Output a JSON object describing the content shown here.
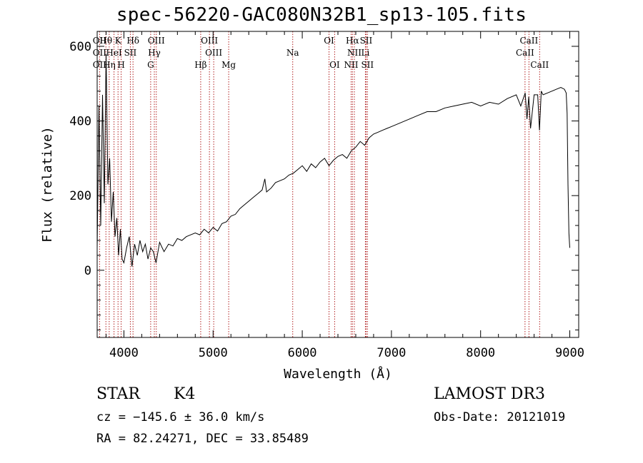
{
  "chart_data": {
    "type": "line",
    "title": "spec-56220-GAC080N32B1_sp13-105.fits",
    "xlabel": "Wavelength (Å)",
    "ylabel": "Flux (relative)",
    "xlim": [
      3700,
      9100
    ],
    "ylim": [
      -180,
      640
    ],
    "x_ticks": [
      4000,
      5000,
      6000,
      7000,
      8000,
      9000
    ],
    "x_tick_labels": [
      "4000",
      "5000",
      "6000",
      "7000",
      "8000",
      "9000"
    ],
    "y_ticks": [
      0,
      200,
      400,
      600
    ],
    "y_tick_labels": [
      "0",
      "200",
      "400",
      "600"
    ],
    "series": [
      {
        "name": "spectrum",
        "x": [
          3700,
          3720,
          3740,
          3760,
          3780,
          3800,
          3820,
          3840,
          3860,
          3880,
          3900,
          3920,
          3940,
          3960,
          3980,
          4000,
          4030,
          4060,
          4090,
          4120,
          4150,
          4180,
          4210,
          4240,
          4270,
          4300,
          4330,
          4360,
          4400,
          4450,
          4500,
          4550,
          4600,
          4650,
          4700,
          4750,
          4800,
          4850,
          4900,
          4950,
          5000,
          5050,
          5100,
          5150,
          5200,
          5250,
          5300,
          5350,
          5400,
          5450,
          5500,
          5550,
          5580,
          5600,
          5650,
          5700,
          5750,
          5800,
          5850,
          5900,
          5950,
          6000,
          6050,
          6100,
          6150,
          6200,
          6250,
          6300,
          6350,
          6400,
          6450,
          6500,
          6550,
          6600,
          6650,
          6700,
          6750,
          6800,
          6850,
          6900,
          6950,
          7000,
          7100,
          7200,
          7300,
          7400,
          7500,
          7600,
          7700,
          7800,
          7900,
          8000,
          8100,
          8200,
          8300,
          8400,
          8450,
          8500,
          8520,
          8540,
          8560,
          8600,
          8640,
          8660,
          8680,
          8700,
          8750,
          8800,
          8850,
          8900,
          8940,
          8960,
          8970,
          8980,
          8990,
          9000
        ],
        "y": [
          60,
          440,
          120,
          470,
          180,
          580,
          230,
          300,
          130,
          210,
          90,
          140,
          40,
          110,
          30,
          20,
          60,
          90,
          10,
          70,
          40,
          80,
          50,
          70,
          30,
          60,
          50,
          20,
          75,
          50,
          70,
          65,
          85,
          80,
          90,
          95,
          100,
          95,
          110,
          100,
          115,
          105,
          125,
          130,
          145,
          150,
          165,
          175,
          185,
          195,
          205,
          215,
          245,
          210,
          220,
          235,
          240,
          245,
          255,
          260,
          270,
          280,
          265,
          285,
          275,
          290,
          300,
          280,
          295,
          305,
          310,
          300,
          320,
          330,
          345,
          335,
          355,
          365,
          370,
          375,
          380,
          385,
          395,
          405,
          415,
          425,
          425,
          435,
          440,
          445,
          450,
          440,
          450,
          445,
          460,
          470,
          440,
          475,
          405,
          465,
          380,
          470,
          470,
          375,
          480,
          470,
          475,
          480,
          485,
          490,
          485,
          475,
          420,
          230,
          100,
          60
        ]
      }
    ],
    "lines_top": [
      {
        "label": "OII",
        "x": 3727
      },
      {
        "label": "Hθ",
        "x": 3798
      },
      {
        "label": "K",
        "x": 3934
      },
      {
        "label": "Hδ",
        "x": 4102
      },
      {
        "label": "OIII",
        "x": 4363
      },
      {
        "label": "OIII",
        "x": 4959
      },
      {
        "label": "OI",
        "x": 6300
      },
      {
        "label": "Hα",
        "x": 6563
      },
      {
        "label": "SII",
        "x": 6716
      },
      {
        "label": "CaII",
        "x": 8542
      }
    ],
    "lines_mid": [
      {
        "label": "OII",
        "x": 3727
      },
      {
        "label": "HeI",
        "x": 3889
      },
      {
        "label": "SII",
        "x": 4072
      },
      {
        "label": "Hγ",
        "x": 4341
      },
      {
        "label": "OIII",
        "x": 5007
      },
      {
        "label": "Na",
        "x": 5893
      },
      {
        "label": "NII",
        "x": 6584
      },
      {
        "label": "Li",
        "x": 6708
      },
      {
        "label": "CaII",
        "x": 8498
      }
    ],
    "lines_low": [
      {
        "label": "OII",
        "x": 3727
      },
      {
        "label": "Hη",
        "x": 3835
      },
      {
        "label": "H",
        "x": 3969
      },
      {
        "label": "G",
        "x": 4300
      },
      {
        "label": "Hβ",
        "x": 4861
      },
      {
        "label": "Mg",
        "x": 5175
      },
      {
        "label": "OI",
        "x": 6363
      },
      {
        "label": "NII",
        "x": 6548
      },
      {
        "label": "SII",
        "x": 6731
      },
      {
        "label": "CaII",
        "x": 8662
      }
    ]
  },
  "info": {
    "object_class": "STAR",
    "subclass": "K4",
    "survey": "LAMOST DR3",
    "velocity": "cz = −145.6 ± 36.0 km/s",
    "obs_date": "Obs-Date: 20121019",
    "coordinates": "RA =  82.24271, DEC =  33.85489"
  },
  "style": {
    "line_color": "#000000",
    "marker_color": "#b22222",
    "axis_color": "#000000"
  }
}
